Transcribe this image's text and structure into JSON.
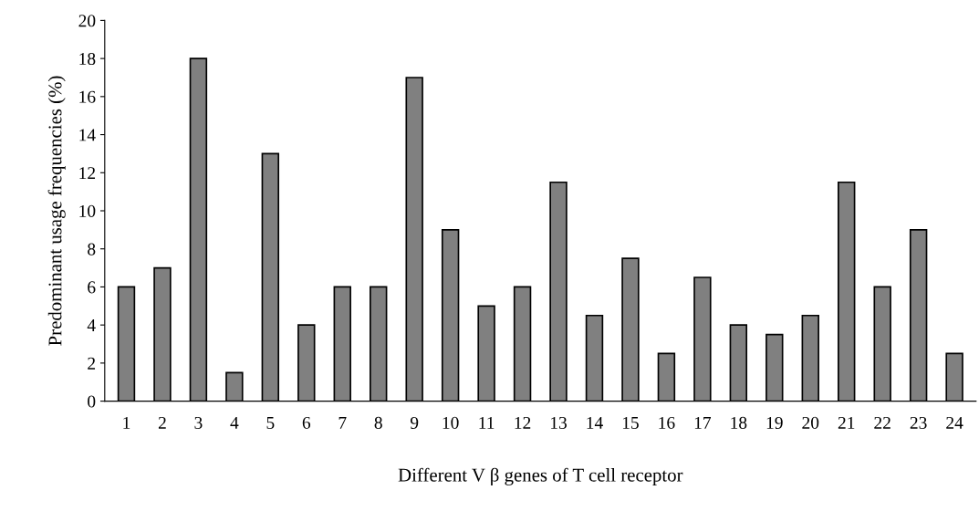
{
  "chart_data": {
    "type": "bar",
    "xlabel": "Different V β genes of T cell receptor",
    "ylabel": "Predominant usage frequencies (%)",
    "categories": [
      "1",
      "2",
      "3",
      "4",
      "5",
      "6",
      "7",
      "8",
      "9",
      "10",
      "11",
      "12",
      "13",
      "14",
      "15",
      "16",
      "17",
      "18",
      "19",
      "20",
      "21",
      "22",
      "23",
      "24"
    ],
    "values": [
      6,
      7,
      18,
      1.5,
      13,
      4,
      6,
      6,
      17,
      9,
      5,
      6,
      11.5,
      4.5,
      7.5,
      2.5,
      6.5,
      4,
      3.5,
      4.5,
      11.5,
      6,
      9,
      2.5
    ],
    "color": "#808080",
    "ylim": [
      0,
      20
    ],
    "yticks": [
      0,
      2,
      4,
      6,
      8,
      10,
      12,
      14,
      16,
      18,
      20
    ],
    "grid": false,
    "legend": false
  }
}
